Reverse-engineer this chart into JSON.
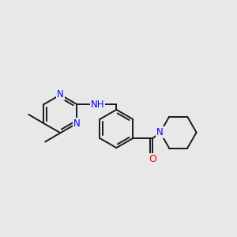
{
  "background_color": "#e8e8e8",
  "bond_color": "#1a1a1a",
  "nitrogen_color": "#0000ff",
  "oxygen_color": "#ff0000",
  "line_width": 1.4,
  "dbo": 0.07,
  "figsize": [
    3.0,
    3.0
  ],
  "dpi": 100,
  "xlim": [
    0,
    10
  ],
  "ylim": [
    2,
    8
  ]
}
